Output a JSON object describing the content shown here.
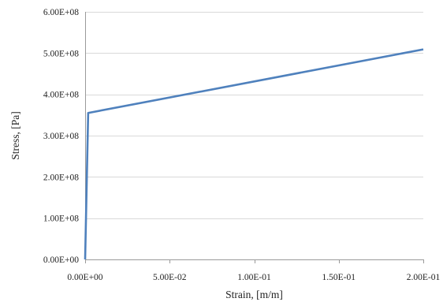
{
  "chart_data": {
    "type": "line",
    "title": "",
    "xlabel": "Strain, [m/m]",
    "ylabel": "Stress, [Pa]",
    "xlim": [
      0,
      0.2
    ],
    "ylim": [
      0,
      600000000
    ],
    "x_ticks": [
      0,
      0.05,
      0.1,
      0.15,
      0.2
    ],
    "x_tick_labels": [
      "0.00E+00",
      "5.00E-02",
      "1.00E-01",
      "1.50E-01",
      "2.00E-01"
    ],
    "y_ticks": [
      0,
      100000000,
      200000000,
      300000000,
      400000000,
      500000000,
      600000000
    ],
    "y_tick_labels": [
      "0.00E+00",
      "1.00E+08",
      "2.00E+08",
      "3.00E+08",
      "4.00E+08",
      "5.00E+08",
      "6.00E+08"
    ],
    "grid": "horizontal",
    "legend": "none",
    "series": [
      {
        "color": "#4f81bd",
        "x": [
          0,
          0.0018,
          0.2
        ],
        "y": [
          0,
          355000000,
          509000000
        ]
      }
    ]
  }
}
